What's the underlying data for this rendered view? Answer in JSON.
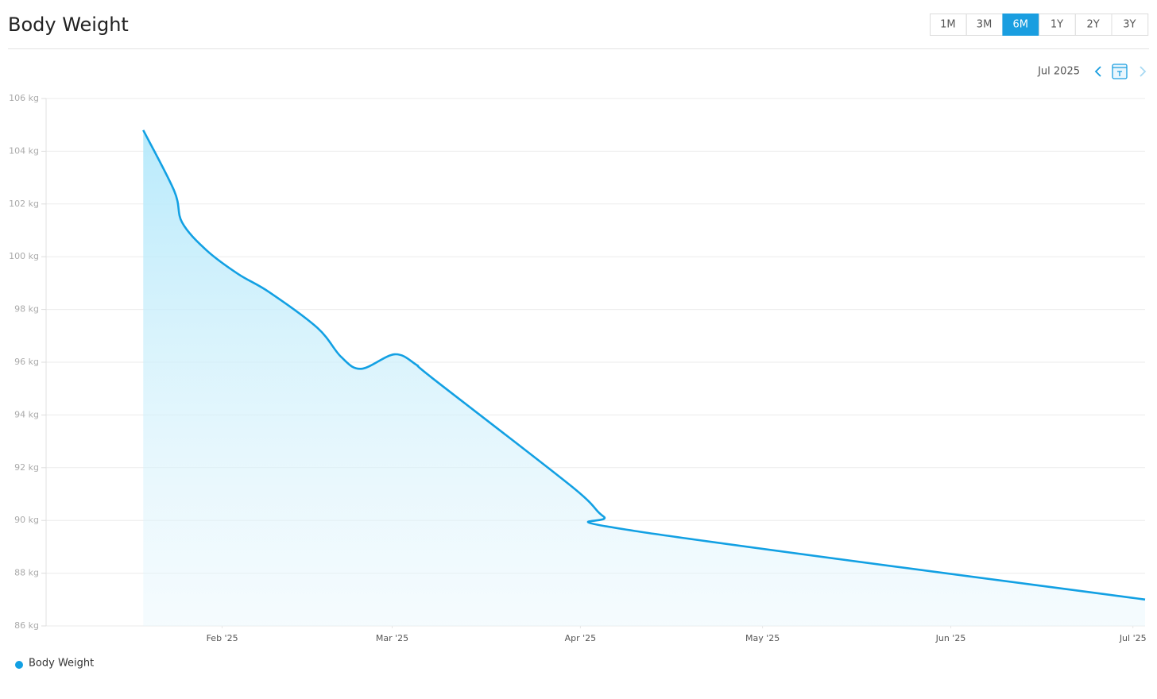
{
  "header": {
    "title": "Body Weight",
    "range_buttons": [
      "1M",
      "3M",
      "6M",
      "1Y",
      "2Y",
      "3Y"
    ],
    "active_range": "6M",
    "period_label": "Jul 2025"
  },
  "chart_data": {
    "type": "area",
    "x": [
      19,
      24.1,
      25.4,
      29.4,
      34.6,
      39.8,
      47.7,
      51.6,
      54.9,
      60.4,
      64,
      66.6,
      89.5,
      94.8,
      100,
      184
    ],
    "series": [
      {
        "name": "Body Weight",
        "color": "#12a0e3",
        "values": [
          104.8,
          102.5,
          101.3,
          100.25,
          99.35,
          98.65,
          97.3,
          96.2,
          95.75,
          96.3,
          95.9,
          95.4,
          91.3,
          90.15,
          89.6,
          87.0
        ]
      }
    ],
    "xlim": [
      3,
      184
    ],
    "xticks": [
      {
        "value": 32,
        "label": "Feb '25"
      },
      {
        "value": 60,
        "label": "Mar '25"
      },
      {
        "value": 91,
        "label": "Apr '25"
      },
      {
        "value": 121,
        "label": "May '25"
      },
      {
        "value": 152,
        "label": "Jun '25"
      },
      {
        "value": 182,
        "label": "Jul '25"
      }
    ],
    "ylim": [
      86,
      106
    ],
    "yticks": [
      {
        "value": 86,
        "label": "86 kg"
      },
      {
        "value": 88,
        "label": "88 kg"
      },
      {
        "value": 90,
        "label": "90 kg"
      },
      {
        "value": 92,
        "label": "92 kg"
      },
      {
        "value": 94,
        "label": "94 kg"
      },
      {
        "value": 96,
        "label": "96 kg"
      },
      {
        "value": 98,
        "label": "98 kg"
      },
      {
        "value": 100,
        "label": "100 kg"
      },
      {
        "value": 102,
        "label": "102 kg"
      },
      {
        "value": 104,
        "label": "104 kg"
      },
      {
        "value": 106,
        "label": "106 kg"
      }
    ],
    "grid": true,
    "legend": "bottom-left"
  }
}
